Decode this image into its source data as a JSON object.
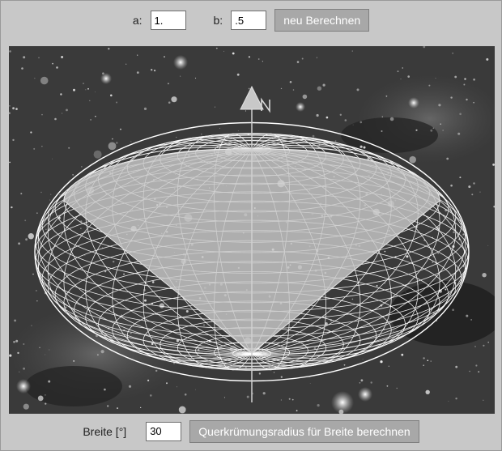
{
  "top_bar": {
    "a_label": "a:",
    "a_value": "1.",
    "b_label": "b:",
    "b_value": ".5",
    "recalc_button": "neu Berechnen"
  },
  "bottom_bar": {
    "latitude_label": "Breite [°]",
    "latitude_value": "30",
    "compute_button": "Querkrümungsradius für Breite berechnen"
  },
  "scene": {
    "background": "star-field",
    "ellipsoid_semi_axis_a": 1.0,
    "ellipsoid_semi_axis_b": 0.5,
    "latitude_deg": 30,
    "mesh_color": "#ffffff",
    "cone_color": "#cccccc",
    "axis_icon": "north-arrow-icon"
  }
}
